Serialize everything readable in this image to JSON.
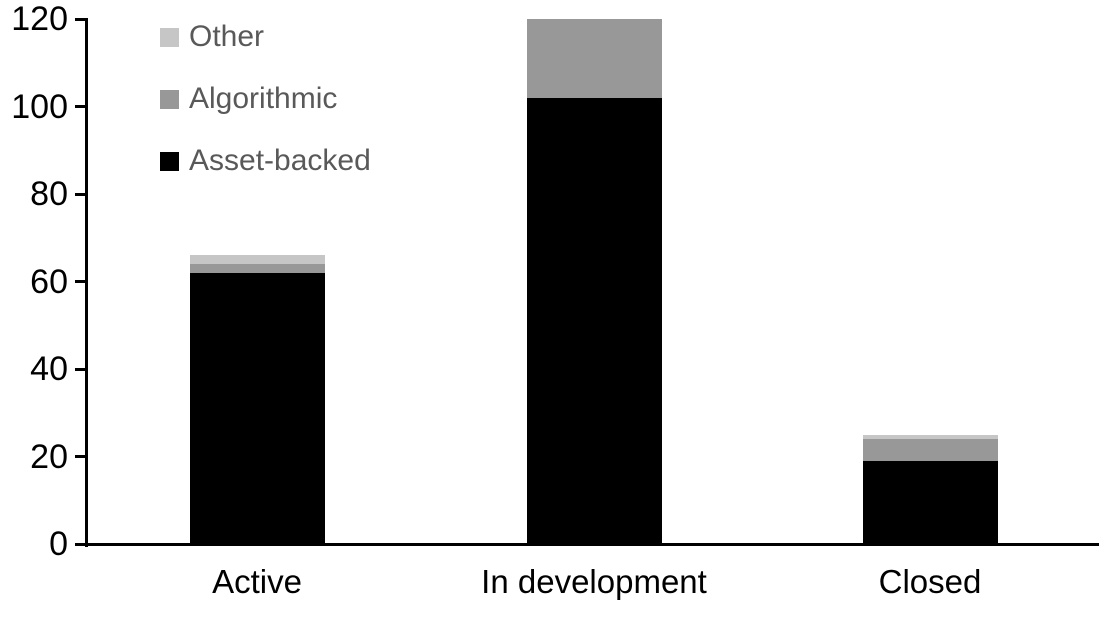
{
  "chart_data": {
    "type": "bar",
    "subtype": "stacked-vertical",
    "title": "",
    "xlabel": "",
    "ylabel": "",
    "categories": [
      "Active",
      "In development",
      "Closed"
    ],
    "series": [
      {
        "name": "Asset-backed",
        "color": "#000000",
        "values": [
          62,
          102,
          19
        ]
      },
      {
        "name": "Algorithmic",
        "color": "#989898",
        "values": [
          2,
          18,
          5
        ]
      },
      {
        "name": "Other",
        "color": "#c6c6c6",
        "values": [
          2,
          0,
          1
        ]
      }
    ],
    "totals": [
      66,
      120,
      25
    ],
    "ylim": [
      0,
      120
    ],
    "yticks": [
      0,
      20,
      40,
      60,
      80,
      100,
      120
    ],
    "grid": "off",
    "legend_position": "top-left-inside",
    "legend_order_top_to_bottom": [
      "Other",
      "Algorithmic",
      "Asset-backed"
    ],
    "colors": {
      "axis": "#000000",
      "tick_label": "#000000",
      "legend_text": "#595959",
      "background": "#ffffff"
    }
  }
}
